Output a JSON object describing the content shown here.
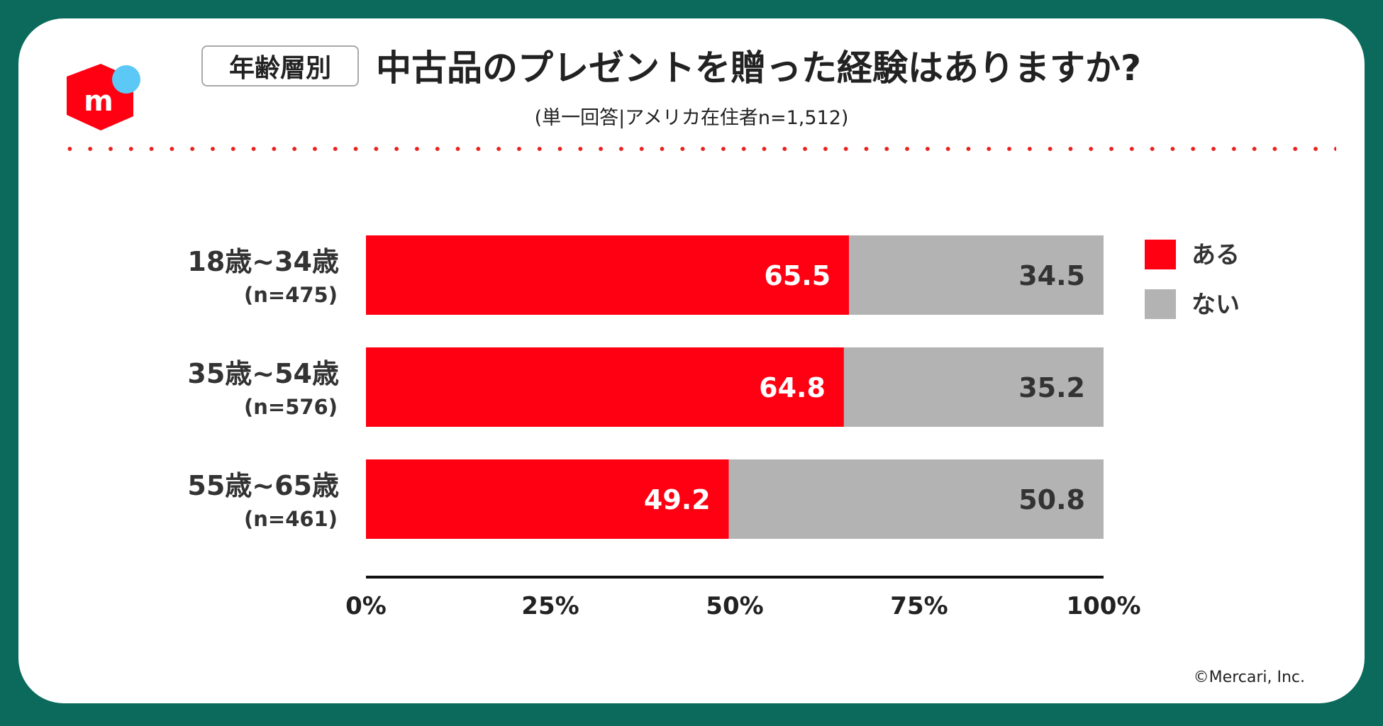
{
  "header": {
    "tag": "年齢層別",
    "title": "中古品のプレゼントを贈った経験はありますか?",
    "subtitle": "(単一回答|アメリカ在住者n=1,512)"
  },
  "footer": {
    "copyright": "©Mercari, Inc."
  },
  "colors": {
    "frame": "#0b6a5c",
    "yes": "#ff0012",
    "no": "#b3b3b3",
    "dots": "#e8231f",
    "logo": "#ff0012",
    "logo_dot": "#5bc8f5"
  },
  "chart_data": {
    "type": "bar",
    "orientation": "horizontal",
    "stacked": true,
    "categories": [
      "18歳~34歳",
      "35歳~54歳",
      "55歳~65歳"
    ],
    "category_notes": [
      "(n=475)",
      "(n=576)",
      "(n=461)"
    ],
    "series": [
      {
        "name": "ある",
        "values": [
          65.5,
          64.8,
          49.2
        ]
      },
      {
        "name": "ない",
        "values": [
          34.5,
          35.2,
          50.8
        ]
      }
    ],
    "xlim": [
      0,
      100
    ],
    "xticks": [
      "0%",
      "25%",
      "50%",
      "75%",
      "100%"
    ],
    "grid": false,
    "legend_position": "top-right"
  }
}
